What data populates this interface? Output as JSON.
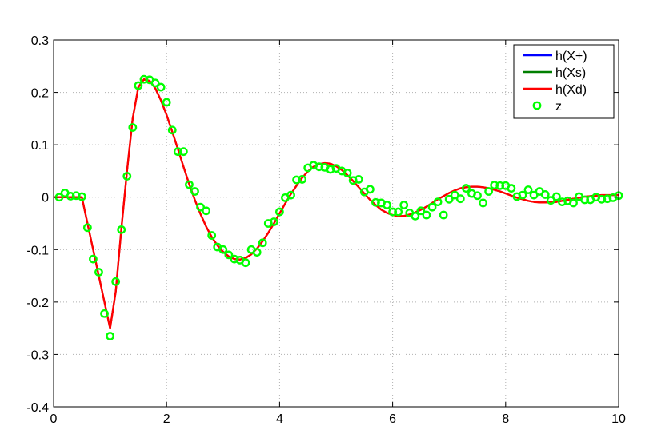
{
  "chart_data": {
    "type": "line",
    "title": "",
    "xlabel": "",
    "ylabel": "",
    "xlim": [
      0,
      10
    ],
    "ylim": [
      -0.4,
      0.3
    ],
    "grid": true,
    "legend_position": "top-right",
    "x_ticks": [
      0,
      2,
      4,
      6,
      8,
      10
    ],
    "x_tick_labels": [
      "0",
      "2",
      "4",
      "6",
      "8",
      "10"
    ],
    "y_ticks": [
      -0.4,
      -0.3,
      -0.2,
      -0.1,
      0,
      0.1,
      0.2,
      0.3
    ],
    "y_tick_labels": [
      "-0.4",
      "-0.3",
      "-0.2",
      "-0.1",
      "0",
      "0.1",
      "0.2",
      "0.3"
    ],
    "curve_x": [
      0,
      0.5,
      1.0,
      1.1,
      1.2,
      1.3,
      1.4,
      1.5,
      1.6,
      1.7,
      1.8,
      1.9,
      2.0,
      2.1,
      2.2,
      2.3,
      2.4,
      2.5,
      2.6,
      2.7,
      2.8,
      2.9,
      3.0,
      3.1,
      3.2,
      3.3,
      3.4,
      3.5,
      3.6,
      3.7,
      3.8,
      3.9,
      4.0,
      4.1,
      4.2,
      4.3,
      4.4,
      4.5,
      4.6,
      4.7,
      4.8,
      4.9,
      5.0,
      5.1,
      5.2,
      5.3,
      5.4,
      5.5,
      5.6,
      5.7,
      5.8,
      5.9,
      6.0,
      6.1,
      6.2,
      6.3,
      6.4,
      6.5,
      6.6,
      6.7,
      6.8,
      6.9,
      7.0,
      7.1,
      7.2,
      7.3,
      7.4,
      7.5,
      7.6,
      7.7,
      7.8,
      7.9,
      8.0,
      8.1,
      8.2,
      8.3,
      8.4,
      8.5,
      8.6,
      8.7,
      8.8,
      8.9,
      9.0,
      9.1,
      9.2,
      9.3,
      9.4,
      9.5,
      9.6,
      9.7,
      9.8,
      9.9,
      10.0
    ],
    "series": [
      {
        "name": "h(X+)",
        "color": "#0000ff",
        "values": [
          0,
          0,
          -0.25,
          -0.18,
          -0.06,
          0.05,
          0.15,
          0.21,
          0.225,
          0.222,
          0.208,
          0.185,
          0.157,
          0.125,
          0.092,
          0.058,
          0.025,
          -0.005,
          -0.032,
          -0.056,
          -0.076,
          -0.092,
          -0.104,
          -0.113,
          -0.118,
          -0.119,
          -0.116,
          -0.109,
          -0.098,
          -0.084,
          -0.068,
          -0.05,
          -0.031,
          -0.012,
          0.006,
          0.022,
          0.037,
          0.049,
          0.058,
          0.063,
          0.065,
          0.064,
          0.059,
          0.052,
          0.042,
          0.031,
          0.019,
          0.007,
          -0.005,
          -0.015,
          -0.024,
          -0.03,
          -0.034,
          -0.036,
          -0.036,
          -0.033,
          -0.029,
          -0.024,
          -0.018,
          -0.011,
          -0.004,
          0.002,
          0.008,
          0.013,
          0.017,
          0.019,
          0.02,
          0.02,
          0.019,
          0.017,
          0.014,
          0.011,
          0.007,
          0.003,
          -0.001,
          -0.004,
          -0.007,
          -0.009,
          -0.01,
          -0.01,
          -0.01,
          -0.009,
          -0.007,
          -0.005,
          -0.003,
          -0.001,
          0.001,
          0.002,
          0.003,
          0.004,
          0.004,
          0.004,
          0.004
        ]
      },
      {
        "name": "h(Xs)",
        "color": "#007f00",
        "values": [
          0,
          0,
          -0.25,
          -0.18,
          -0.06,
          0.05,
          0.15,
          0.21,
          0.225,
          0.222,
          0.208,
          0.185,
          0.157,
          0.125,
          0.092,
          0.058,
          0.025,
          -0.005,
          -0.032,
          -0.056,
          -0.076,
          -0.092,
          -0.104,
          -0.113,
          -0.118,
          -0.119,
          -0.116,
          -0.109,
          -0.098,
          -0.084,
          -0.068,
          -0.05,
          -0.031,
          -0.012,
          0.006,
          0.022,
          0.037,
          0.049,
          0.058,
          0.063,
          0.065,
          0.064,
          0.059,
          0.052,
          0.042,
          0.031,
          0.019,
          0.007,
          -0.005,
          -0.015,
          -0.024,
          -0.03,
          -0.034,
          -0.036,
          -0.036,
          -0.033,
          -0.029,
          -0.024,
          -0.018,
          -0.011,
          -0.004,
          0.002,
          0.008,
          0.013,
          0.017,
          0.019,
          0.02,
          0.02,
          0.019,
          0.017,
          0.014,
          0.011,
          0.007,
          0.003,
          -0.001,
          -0.004,
          -0.007,
          -0.009,
          -0.01,
          -0.01,
          -0.01,
          -0.009,
          -0.007,
          -0.005,
          -0.003,
          -0.001,
          0.001,
          0.002,
          0.003,
          0.004,
          0.004,
          0.004,
          0.004
        ]
      },
      {
        "name": "h(Xd)",
        "color": "#ff0000",
        "values": [
          0,
          0,
          -0.25,
          -0.18,
          -0.06,
          0.05,
          0.15,
          0.21,
          0.225,
          0.222,
          0.208,
          0.185,
          0.157,
          0.125,
          0.092,
          0.058,
          0.025,
          -0.005,
          -0.032,
          -0.056,
          -0.076,
          -0.092,
          -0.104,
          -0.113,
          -0.118,
          -0.119,
          -0.116,
          -0.109,
          -0.098,
          -0.084,
          -0.068,
          -0.05,
          -0.031,
          -0.012,
          0.006,
          0.022,
          0.037,
          0.049,
          0.058,
          0.063,
          0.065,
          0.064,
          0.059,
          0.052,
          0.042,
          0.031,
          0.019,
          0.007,
          -0.005,
          -0.015,
          -0.024,
          -0.03,
          -0.034,
          -0.036,
          -0.036,
          -0.033,
          -0.029,
          -0.024,
          -0.018,
          -0.011,
          -0.004,
          0.002,
          0.008,
          0.013,
          0.017,
          0.019,
          0.02,
          0.02,
          0.019,
          0.017,
          0.014,
          0.011,
          0.007,
          0.003,
          -0.001,
          -0.004,
          -0.007,
          -0.009,
          -0.01,
          -0.01,
          -0.01,
          -0.009,
          -0.007,
          -0.005,
          -0.003,
          -0.001,
          0.001,
          0.002,
          0.003,
          0.004,
          0.004,
          0.004,
          0.004
        ]
      }
    ],
    "scatter": {
      "name": "z",
      "color": "#00ff00",
      "points": [
        [
          0.1,
          0.0
        ],
        [
          0.2,
          0.008
        ],
        [
          0.3,
          0.002
        ],
        [
          0.4,
          0.003
        ],
        [
          0.5,
          0.001
        ],
        [
          0.6,
          -0.058
        ],
        [
          0.7,
          -0.118
        ],
        [
          0.8,
          -0.143
        ],
        [
          0.9,
          -0.222
        ],
        [
          1.0,
          -0.265
        ],
        [
          1.1,
          -0.161
        ],
        [
          1.2,
          -0.062
        ],
        [
          1.3,
          0.04
        ],
        [
          1.4,
          0.133
        ],
        [
          1.5,
          0.213
        ],
        [
          1.6,
          0.225
        ],
        [
          1.7,
          0.224
        ],
        [
          1.8,
          0.218
        ],
        [
          1.9,
          0.21
        ],
        [
          2.0,
          0.181
        ],
        [
          2.1,
          0.128
        ],
        [
          2.2,
          0.087
        ],
        [
          2.3,
          0.087
        ],
        [
          2.4,
          0.024
        ],
        [
          2.5,
          0.011
        ],
        [
          2.6,
          -0.019
        ],
        [
          2.7,
          -0.026
        ],
        [
          2.8,
          -0.073
        ],
        [
          2.9,
          -0.095
        ],
        [
          3.0,
          -0.1
        ],
        [
          3.1,
          -0.11
        ],
        [
          3.2,
          -0.118
        ],
        [
          3.3,
          -0.12
        ],
        [
          3.4,
          -0.125
        ],
        [
          3.5,
          -0.1
        ],
        [
          3.6,
          -0.105
        ],
        [
          3.7,
          -0.087
        ],
        [
          3.8,
          -0.05
        ],
        [
          3.9,
          -0.047
        ],
        [
          4.0,
          -0.028
        ],
        [
          4.1,
          -0.001
        ],
        [
          4.2,
          0.004
        ],
        [
          4.3,
          0.033
        ],
        [
          4.4,
          0.034
        ],
        [
          4.5,
          0.056
        ],
        [
          4.6,
          0.061
        ],
        [
          4.7,
          0.058
        ],
        [
          4.8,
          0.057
        ],
        [
          4.9,
          0.053
        ],
        [
          5.0,
          0.055
        ],
        [
          5.1,
          0.05
        ],
        [
          5.2,
          0.046
        ],
        [
          5.3,
          0.032
        ],
        [
          5.4,
          0.034
        ],
        [
          5.5,
          0.01
        ],
        [
          5.6,
          0.015
        ],
        [
          5.7,
          -0.01
        ],
        [
          5.8,
          -0.011
        ],
        [
          5.9,
          -0.015
        ],
        [
          6.0,
          -0.028
        ],
        [
          6.1,
          -0.028
        ],
        [
          6.2,
          -0.015
        ],
        [
          6.3,
          -0.03
        ],
        [
          6.4,
          -0.036
        ],
        [
          6.5,
          -0.026
        ],
        [
          6.6,
          -0.034
        ],
        [
          6.7,
          -0.019
        ],
        [
          6.8,
          -0.009
        ],
        [
          6.9,
          -0.034
        ],
        [
          7.0,
          -0.004
        ],
        [
          7.1,
          0.004
        ],
        [
          7.2,
          -0.003
        ],
        [
          7.3,
          0.017
        ],
        [
          7.4,
          0.007
        ],
        [
          7.5,
          0.003
        ],
        [
          7.6,
          -0.011
        ],
        [
          7.7,
          0.011
        ],
        [
          7.8,
          0.023
        ],
        [
          7.9,
          0.022
        ],
        [
          8.0,
          0.022
        ],
        [
          8.1,
          0.017
        ],
        [
          8.2,
          0.001
        ],
        [
          8.3,
          0.004
        ],
        [
          8.4,
          0.014
        ],
        [
          8.5,
          0.004
        ],
        [
          8.6,
          0.011
        ],
        [
          8.7,
          0.005
        ],
        [
          8.8,
          -0.006
        ],
        [
          8.9,
          0.001
        ],
        [
          9.0,
          -0.009
        ],
        [
          9.1,
          -0.007
        ],
        [
          9.2,
          -0.011
        ],
        [
          9.3,
          0.001
        ],
        [
          9.4,
          -0.005
        ],
        [
          9.5,
          -0.005
        ],
        [
          9.6,
          0.0
        ],
        [
          9.7,
          -0.004
        ],
        [
          9.8,
          -0.003
        ],
        [
          9.9,
          -0.001
        ],
        [
          10.0,
          0.003
        ]
      ]
    }
  }
}
